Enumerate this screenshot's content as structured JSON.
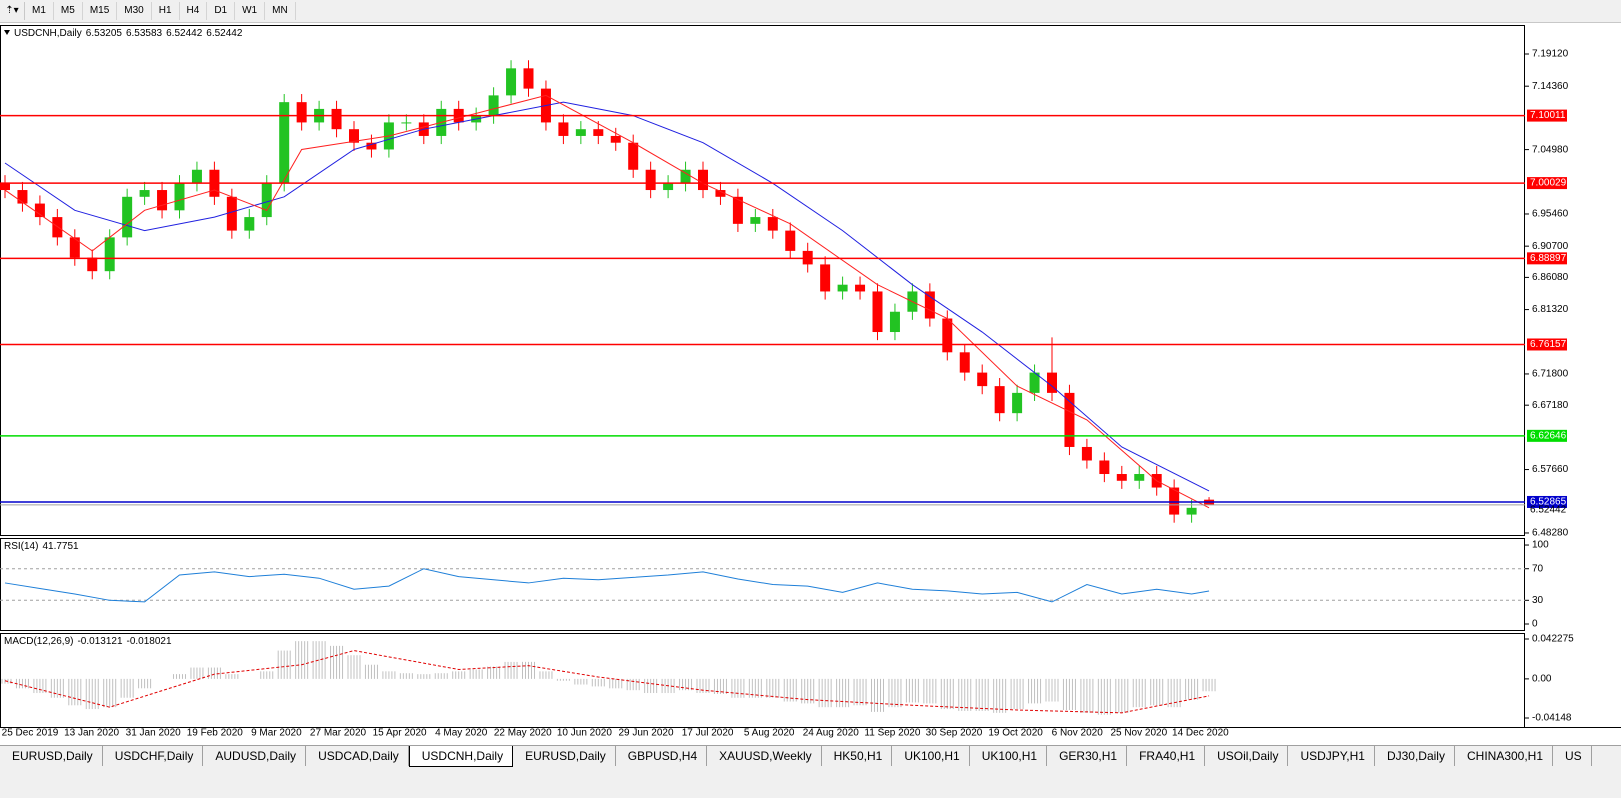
{
  "toolbar": {
    "timeframes": [
      "M1",
      "M5",
      "M15",
      "M30",
      "H1",
      "H4",
      "D1",
      "W1",
      "MN"
    ]
  },
  "tabs": [
    "EURUSD,Daily",
    "USDCHF,Daily",
    "AUDUSD,Daily",
    "USDCAD,Daily",
    "USDCNH,Daily",
    "EURUSD,Daily",
    "GBPUSD,H4",
    "XAUUSD,Weekly",
    "HK50,H1",
    "UK100,H1",
    "UK100,H1",
    "GER30,H1",
    "FRA40,H1",
    "USOil,Daily",
    "USDJPY,H1",
    "DJ30,Daily",
    "CHINA300,H1",
    "US"
  ],
  "active_tab": 4,
  "chart_data": [
    {
      "type": "candlestick",
      "title": "USDCNH,Daily",
      "up_color": "#22c322",
      "down_color": "#ff0000",
      "bid_color": "#a0a0a0",
      "candles": {
        "open": [
          7.0,
          6.99,
          6.97,
          6.95,
          6.92,
          6.89,
          6.87,
          6.92,
          6.98,
          6.99,
          6.96,
          7.0,
          7.02,
          6.98,
          6.93,
          6.95,
          7.0,
          7.12,
          7.09,
          7.11,
          7.08,
          7.06,
          7.05,
          7.09,
          7.09,
          7.07,
          7.11,
          7.09,
          7.1,
          7.13,
          7.17,
          7.14,
          7.09,
          7.07,
          7.08,
          7.07,
          7.06,
          7.02,
          6.99,
          7.0,
          7.02,
          6.99,
          6.98,
          6.94,
          6.95,
          6.93,
          6.9,
          6.88,
          6.84,
          6.85,
          6.84,
          6.78,
          6.81,
          6.84,
          6.8,
          6.75,
          6.72,
          6.7,
          6.66,
          6.69,
          6.72,
          6.69,
          6.61,
          6.59,
          6.57,
          6.56,
          6.57,
          6.55,
          6.51,
          6.53205
        ],
        "high": [
          7.012,
          7.002,
          6.982,
          6.962,
          6.932,
          6.902,
          6.932,
          6.992,
          7.002,
          7.002,
          7.012,
          7.032,
          7.032,
          6.992,
          6.962,
          7.012,
          7.132,
          7.132,
          7.122,
          7.122,
          7.092,
          7.072,
          7.102,
          7.102,
          7.102,
          7.122,
          7.122,
          7.112,
          7.142,
          7.182,
          7.182,
          7.152,
          7.102,
          7.092,
          7.092,
          7.082,
          7.072,
          7.032,
          7.012,
          7.032,
          7.032,
          7.002,
          6.992,
          6.962,
          6.962,
          6.942,
          6.912,
          6.892,
          6.862,
          6.862,
          6.852,
          6.822,
          6.852,
          6.852,
          6.812,
          6.762,
          6.732,
          6.712,
          6.702,
          6.732,
          6.772,
          6.702,
          6.622,
          6.602,
          6.582,
          6.582,
          6.582,
          6.562,
          6.532,
          6.53583
        ],
        "low": [
          6.978,
          6.958,
          6.938,
          6.908,
          6.878,
          6.858,
          6.858,
          6.908,
          6.968,
          6.948,
          6.948,
          6.988,
          6.968,
          6.918,
          6.918,
          6.938,
          6.988,
          7.078,
          7.078,
          7.068,
          7.048,
          7.038,
          7.038,
          7.078,
          7.058,
          7.058,
          7.078,
          7.078,
          7.088,
          7.118,
          7.128,
          7.078,
          7.058,
          7.058,
          7.058,
          7.048,
          7.008,
          6.978,
          6.978,
          6.988,
          6.978,
          6.968,
          6.928,
          6.928,
          6.918,
          6.888,
          6.868,
          6.828,
          6.828,
          6.828,
          6.768,
          6.768,
          6.798,
          6.788,
          6.738,
          6.708,
          6.688,
          6.648,
          6.648,
          6.678,
          6.678,
          6.598,
          6.578,
          6.558,
          6.548,
          6.548,
          6.538,
          6.498,
          6.498,
          6.52442
        ],
        "close": [
          6.99,
          6.97,
          6.95,
          6.92,
          6.89,
          6.87,
          6.92,
          6.98,
          6.99,
          6.96,
          7.0,
          7.02,
          6.98,
          6.93,
          6.95,
          7.0,
          7.12,
          7.09,
          7.11,
          7.08,
          7.06,
          7.05,
          7.09,
          7.09,
          7.07,
          7.11,
          7.09,
          7.1,
          7.13,
          7.17,
          7.14,
          7.09,
          7.07,
          7.08,
          7.07,
          7.06,
          7.02,
          6.99,
          7.0,
          7.02,
          6.99,
          6.98,
          6.94,
          6.95,
          6.93,
          6.9,
          6.88,
          6.84,
          6.85,
          6.84,
          6.78,
          6.81,
          6.84,
          6.8,
          6.75,
          6.72,
          6.7,
          6.66,
          6.69,
          6.72,
          6.69,
          6.61,
          6.59,
          6.57,
          6.56,
          6.57,
          6.55,
          6.51,
          6.52,
          6.52442
        ]
      },
      "moving_averages": [
        {
          "color": "#2020e0",
          "x": [
            0,
            4,
            8,
            12,
            16,
            20,
            24,
            28,
            32,
            36,
            40,
            44,
            48,
            52,
            56,
            60,
            64,
            69
          ],
          "values": [
            7.03,
            6.96,
            6.93,
            6.95,
            6.98,
            7.05,
            7.08,
            7.1,
            7.12,
            7.1,
            7.06,
            7.0,
            6.93,
            6.85,
            6.78,
            6.7,
            6.61,
            6.545
          ]
        },
        {
          "color": "#ff2020",
          "x": [
            0,
            5,
            8,
            12,
            15,
            17,
            22,
            28,
            31,
            36,
            40,
            45,
            50,
            54,
            58,
            62,
            66,
            69
          ],
          "values": [
            6.99,
            6.9,
            6.96,
            6.99,
            6.96,
            7.05,
            7.07,
            7.11,
            7.13,
            7.06,
            7.0,
            6.94,
            6.85,
            6.8,
            6.7,
            6.65,
            6.56,
            6.52
          ]
        }
      ],
      "levels": [
        {
          "value": 7.10011,
          "color": "#ff0000"
        },
        {
          "value": 7.00029,
          "color": "#ff0000"
        },
        {
          "value": 6.88897,
          "color": "#ff0000"
        },
        {
          "value": 6.76157,
          "color": "#ff0000"
        },
        {
          "value": 6.62646,
          "color": "#00dd00"
        },
        {
          "value": 6.52865,
          "color": "#0000cc"
        }
      ],
      "ylim": [
        6.4798,
        7.2341
      ],
      "yticks": [
        {
          "value": 7.1912,
          "label": "7.19120"
        },
        {
          "value": 7.1436,
          "label": "7.14360"
        },
        {
          "value": 7.0498,
          "label": "7.04980"
        },
        {
          "value": 6.9546,
          "label": "6.95460"
        },
        {
          "value": 6.907,
          "label": "6.90700"
        },
        {
          "value": 6.8608,
          "label": "6.86080"
        },
        {
          "value": 6.8132,
          "label": "6.81320"
        },
        {
          "value": 6.718,
          "label": "6.71800"
        },
        {
          "value": 6.6718,
          "label": "6.67180"
        },
        {
          "value": 6.5766,
          "label": "6.57660"
        },
        {
          "value": 6.4828,
          "label": "6.48280"
        }
      ],
      "categories": [
        "25 Dec 2019",
        "13 Jan 2020",
        "31 Jan 2020",
        "19 Feb 2020",
        "9 Mar 2020",
        "27 Mar 2020",
        "15 Apr 2020",
        "4 May 2020",
        "22 May 2020",
        "10 Jun 2020",
        "29 Jun 2020",
        "17 Jul 2020",
        "5 Aug 2020",
        "24 Aug 2020",
        "11 Sep 2020",
        "30 Sep 2020",
        "19 Oct 2020",
        "6 Nov 2020",
        "25 Nov 2020",
        "14 Dec 2020"
      ]
    },
    {
      "type": "line",
      "title": "RSI(14)",
      "series": [
        {
          "color": "#1e7fd8",
          "x": [
            0,
            2,
            4,
            6,
            8,
            10,
            12,
            14,
            16,
            18,
            20,
            22,
            24,
            26,
            28,
            30,
            32,
            34,
            36,
            38,
            40,
            42,
            44,
            46,
            48,
            50,
            52,
            54,
            56,
            58,
            60,
            62,
            64,
            66,
            68,
            69
          ],
          "values": [
            52,
            45,
            38,
            30,
            28,
            62,
            66,
            60,
            63,
            58,
            44,
            48,
            70,
            60,
            56,
            52,
            58,
            56,
            59,
            62,
            66,
            57,
            50,
            48,
            40,
            52,
            44,
            42,
            38,
            40,
            28,
            50,
            38,
            44,
            38,
            41.7751
          ]
        }
      ],
      "levels": [
        70,
        30
      ],
      "ylim": [
        -7.6,
        108.9
      ],
      "yticks": [
        100,
        70,
        30,
        0
      ]
    },
    {
      "type": "bar",
      "title": "MACD(12,26,9)",
      "color": "#c0c0c0",
      "values": [
        -0.005,
        -0.01,
        -0.015,
        -0.02,
        -0.028,
        -0.032,
        -0.03,
        -0.02,
        -0.01,
        0.0,
        0.005,
        0.012,
        0.012,
        0.005,
        0.0,
        0.008,
        0.03,
        0.04,
        0.04,
        0.035,
        0.025,
        0.015,
        0.008,
        0.006,
        0.005,
        0.006,
        0.008,
        0.01,
        0.013,
        0.018,
        0.018,
        0.008,
        -0.002,
        -0.006,
        -0.008,
        -0.01,
        -0.012,
        -0.015,
        -0.015,
        -0.012,
        -0.015,
        -0.016,
        -0.02,
        -0.02,
        -0.02,
        -0.024,
        -0.026,
        -0.03,
        -0.03,
        -0.028,
        -0.035,
        -0.03,
        -0.025,
        -0.026,
        -0.032,
        -0.034,
        -0.034,
        -0.036,
        -0.032,
        -0.026,
        -0.024,
        -0.033,
        -0.036,
        -0.038,
        -0.036,
        -0.03,
        -0.028,
        -0.03,
        -0.022,
        -0.013121
      ],
      "signal": {
        "color": "#e00000",
        "x": [
          0,
          6,
          12,
          17,
          20,
          26,
          30,
          34,
          40,
          46,
          52,
          58,
          64,
          69
        ],
        "values": [
          -0.002,
          -0.03,
          0.005,
          0.015,
          0.03,
          0.01,
          0.014,
          0.002,
          -0.012,
          -0.022,
          -0.028,
          -0.033,
          -0.036,
          -0.018021
        ]
      },
      "ylim": [
        -0.05102,
        0.04864
      ],
      "yticks": [
        0.042275,
        {
          "value": 0,
          "label": "0.00"
        },
        -0.04148
      ]
    }
  ]
}
